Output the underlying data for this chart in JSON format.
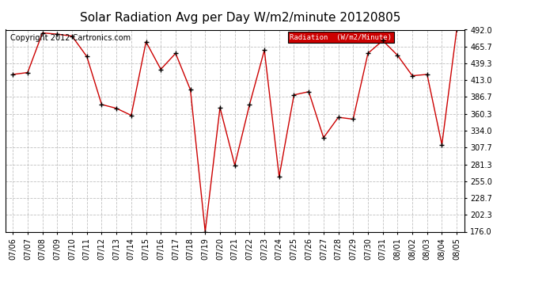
{
  "title": "Solar Radiation Avg per Day W/m2/minute 20120805",
  "copyright": "Copyright 2012 Cartronics.com",
  "legend_label": "Radiation  (W/m2/Minute)",
  "dates": [
    "07/06",
    "07/07",
    "07/08",
    "07/09",
    "07/10",
    "07/11",
    "07/12",
    "07/13",
    "07/14",
    "07/15",
    "07/16",
    "07/17",
    "07/18",
    "07/19",
    "07/20",
    "07/21",
    "07/22",
    "07/23",
    "07/24",
    "07/25",
    "07/26",
    "07/27",
    "07/28",
    "07/29",
    "07/30",
    "07/31",
    "08/01",
    "08/02",
    "08/03",
    "08/04",
    "08/05"
  ],
  "values": [
    422.0,
    425.0,
    487.0,
    485.0,
    482.0,
    450.0,
    375.0,
    369.0,
    358.0,
    473.0,
    430.0,
    455.0,
    398.0,
    176.0,
    370.0,
    280.0,
    375.0,
    460.0,
    262.0,
    390.0,
    395.0,
    323.0,
    355.0,
    352.0,
    455.0,
    475.0,
    452.0,
    420.0,
    422.0,
    312.0,
    492.0
  ],
  "ylim": [
    176.0,
    492.0
  ],
  "yticks": [
    176.0,
    202.3,
    228.7,
    255.0,
    281.3,
    307.7,
    334.0,
    360.3,
    386.7,
    413.0,
    439.3,
    465.7,
    492.0
  ],
  "line_color": "#cc0000",
  "marker_color": "#000000",
  "bg_color": "#ffffff",
  "plot_bg_color": "#ffffff",
  "grid_color": "#c0c0c0",
  "legend_bg": "#cc0000",
  "legend_text_color": "#ffffff",
  "title_fontsize": 11,
  "tick_fontsize": 7,
  "copyright_fontsize": 7
}
